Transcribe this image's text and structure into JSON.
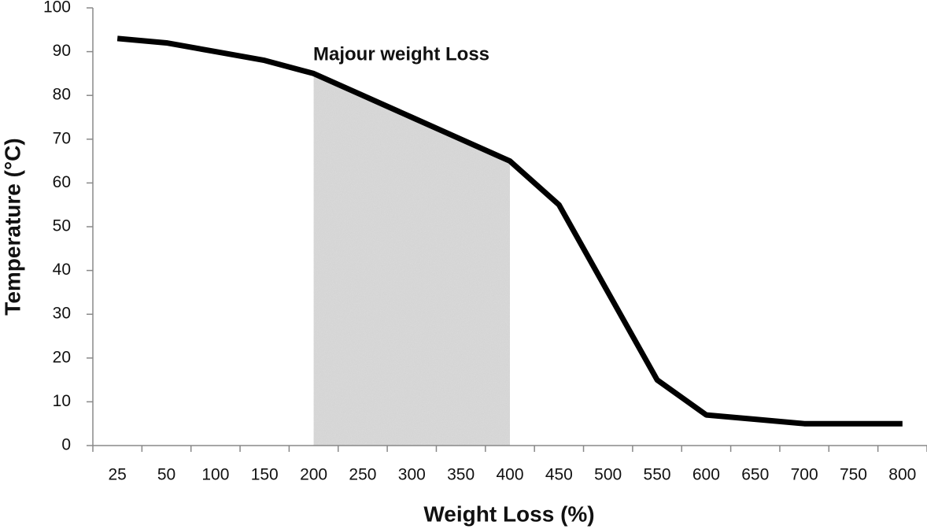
{
  "chart_data": {
    "type": "line",
    "x_label": "Weight Loss (%)",
    "y_label": "Temperature (°C)",
    "annotation": "Majour weight Loss",
    "highlight": {
      "start": "200",
      "end": "400",
      "color": "#dcdcdc"
    },
    "categories": [
      "25",
      "50",
      "100",
      "150",
      "200",
      "250",
      "300",
      "350",
      "400",
      "450",
      "500",
      "550",
      "600",
      "650",
      "700",
      "750",
      "800"
    ],
    "series": [
      {
        "color": "#000000",
        "values": [
          93,
          92,
          90,
          88,
          85,
          80,
          75,
          70,
          65,
          55,
          35,
          15,
          7,
          6,
          5,
          5,
          5
        ]
      }
    ],
    "ylim": [
      0,
      100
    ],
    "yticks": [
      0,
      10,
      20,
      30,
      40,
      50,
      60,
      70,
      80,
      90,
      100
    ]
  }
}
